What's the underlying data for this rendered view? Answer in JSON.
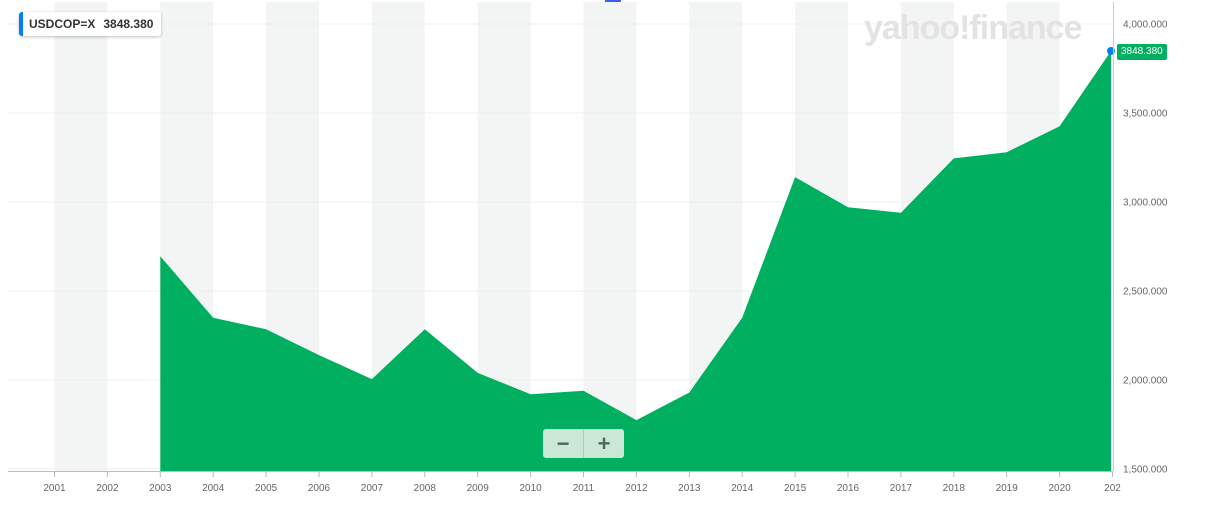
{
  "legend": {
    "symbol": "USDCOP=X",
    "value": "3848.380"
  },
  "watermark": "yahoo!finance",
  "price_tag": "3848.380",
  "zoom": {
    "minus_label": "−",
    "plus_label": "+"
  },
  "colors": {
    "area": "#00b060",
    "band": "#f3f5f4",
    "grid": "#eef0ef",
    "marker": "#0081f2",
    "axis_text": "#666666"
  },
  "chart_data": {
    "type": "area",
    "title": "",
    "xlabel": "",
    "ylabel": "",
    "x_ticks": [
      "2001",
      "2002",
      "2003",
      "2004",
      "2005",
      "2006",
      "2007",
      "2008",
      "2009",
      "2010",
      "2011",
      "2012",
      "2013",
      "2014",
      "2015",
      "2016",
      "2017",
      "2018",
      "2019",
      "2020",
      "202"
    ],
    "y_ticks": [
      "1,500.000",
      "2,000.000",
      "2,500.000",
      "3,000.000",
      "3,500.000",
      "4,000.000"
    ],
    "ylim": [
      1500,
      4000
    ],
    "grid": true,
    "series": [
      {
        "x": [
          2003,
          2004,
          2005,
          2006,
          2007,
          2008,
          2009,
          2010,
          2011,
          2012,
          2013,
          2014,
          2015,
          2016,
          2017,
          2018,
          2019,
          2020,
          2021
        ],
        "values": [
          2695,
          2350,
          2285,
          2140,
          2005,
          2285,
          2040,
          1920,
          1940,
          1775,
          1930,
          2350,
          3140,
          2970,
          2940,
          3245,
          3280,
          3425,
          3848.38
        ]
      }
    ]
  }
}
